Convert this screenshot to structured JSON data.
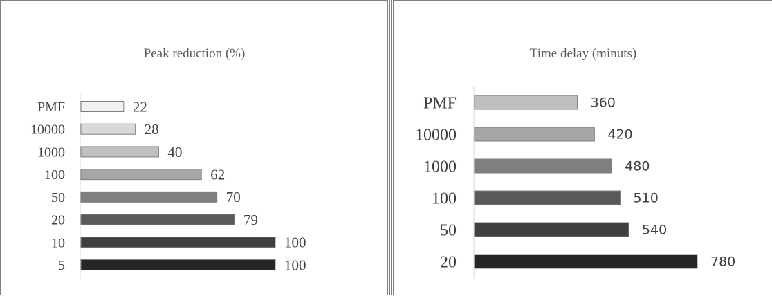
{
  "chart_data": [
    {
      "type": "bar",
      "orientation": "horizontal",
      "title": "Peak reduction (%)",
      "xlabel": "",
      "ylabel": "",
      "categories": [
        "PMF",
        "10000",
        "1000",
        "100",
        "50",
        "20",
        "10",
        "5"
      ],
      "values": [
        22,
        28,
        40,
        62,
        70,
        79,
        100,
        100
      ],
      "colors": [
        "#f2f2f2",
        "#d9d9d9",
        "#bfbfbf",
        "#a6a6a6",
        "#7f7f7f",
        "#595959",
        "#3f3f3f",
        "#262626"
      ],
      "xlim": [
        0,
        100
      ],
      "grid": false,
      "legend": "none"
    },
    {
      "type": "bar",
      "orientation": "horizontal",
      "title": "Time delay (minuts)",
      "xlabel": "",
      "ylabel": "",
      "categories": [
        "PMF",
        "10000",
        "1000",
        "100",
        "50",
        "20"
      ],
      "values": [
        360,
        420,
        480,
        510,
        540,
        780
      ],
      "colors": [
        "#bfbfbf",
        "#a6a6a6",
        "#7f7f7f",
        "#595959",
        "#404040",
        "#262626"
      ],
      "xlim": [
        0,
        780
      ],
      "grid": false,
      "legend": "none"
    }
  ]
}
